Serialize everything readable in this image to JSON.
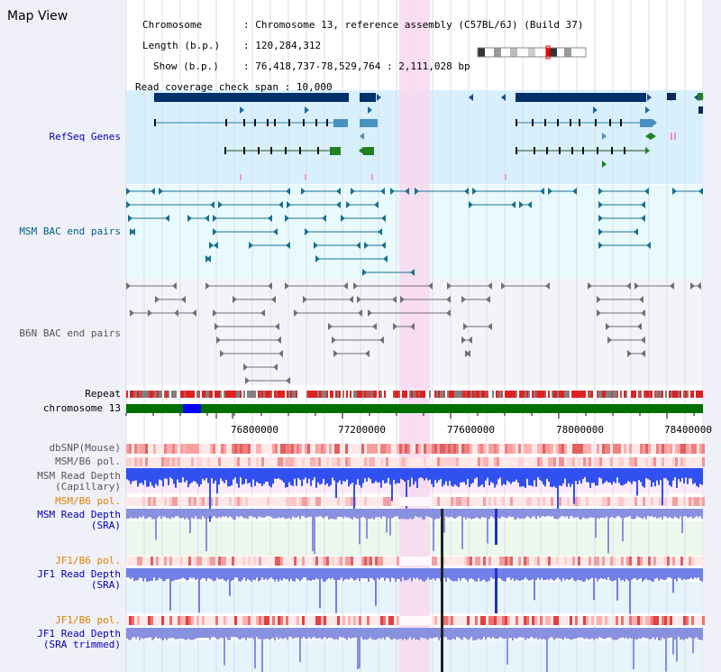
{
  "app": {
    "title": "Map View"
  },
  "info": {
    "chromosome_label": "Chromosome",
    "chromosome_value": "Chromosome 13, reference assembly (C57BL/6J) (Build 37)",
    "length_label": "Length (b.p.)",
    "length_value": "120,284,312",
    "show_label": "Show (b.p.)",
    "show_value": "76,418,737-78,529,764 : 2,111,028 bp",
    "span_label": "Read coverage check span",
    "span_value": "10,000"
  },
  "tracks": {
    "refseq": "RefSeq Genes",
    "msm_bac": "MSM BAC end pairs",
    "b6n_bac": "B6N BAC end pairs",
    "repeat": "Repeat",
    "chrom": "chromosome 13",
    "dbsnp": "dbSNP(Mouse)",
    "msm_b6_pol_1": "MSM/B6 pol.",
    "msm_depth_cap_1": "MSM Read Depth",
    "msm_depth_cap_2": "(Capillary)",
    "msm_b6_pol_2": "MSM/B6 pol.",
    "msm_depth_sra_1": "MSM Read Depth",
    "msm_depth_sra_2": "(SRA)",
    "jf1_b6_pol_1": "JF1/B6 pol.",
    "jf1_depth_1": "JF1 Read Depth",
    "jf1_depth_2": "(SRA)",
    "jf1_b6_pol_2": "JF1/B6 pol.",
    "jf1_depth_tr_1": "JF1 Read Depth",
    "jf1_depth_tr_2": "(SRA trimmed)"
  },
  "axis": {
    "ticks": [
      "76800000",
      "77200000",
      "77600000",
      "78000000",
      "78400000"
    ]
  },
  "colors": {
    "refseq_label": "#0000aa",
    "bac_label": "#006080",
    "b6n_label": "#555555",
    "orange_label": "#e08000",
    "blue_label": "#0000aa",
    "highlight": "#f8d8f0",
    "chrom_green": "#007000",
    "chrom_blue": "#0000ff"
  }
}
